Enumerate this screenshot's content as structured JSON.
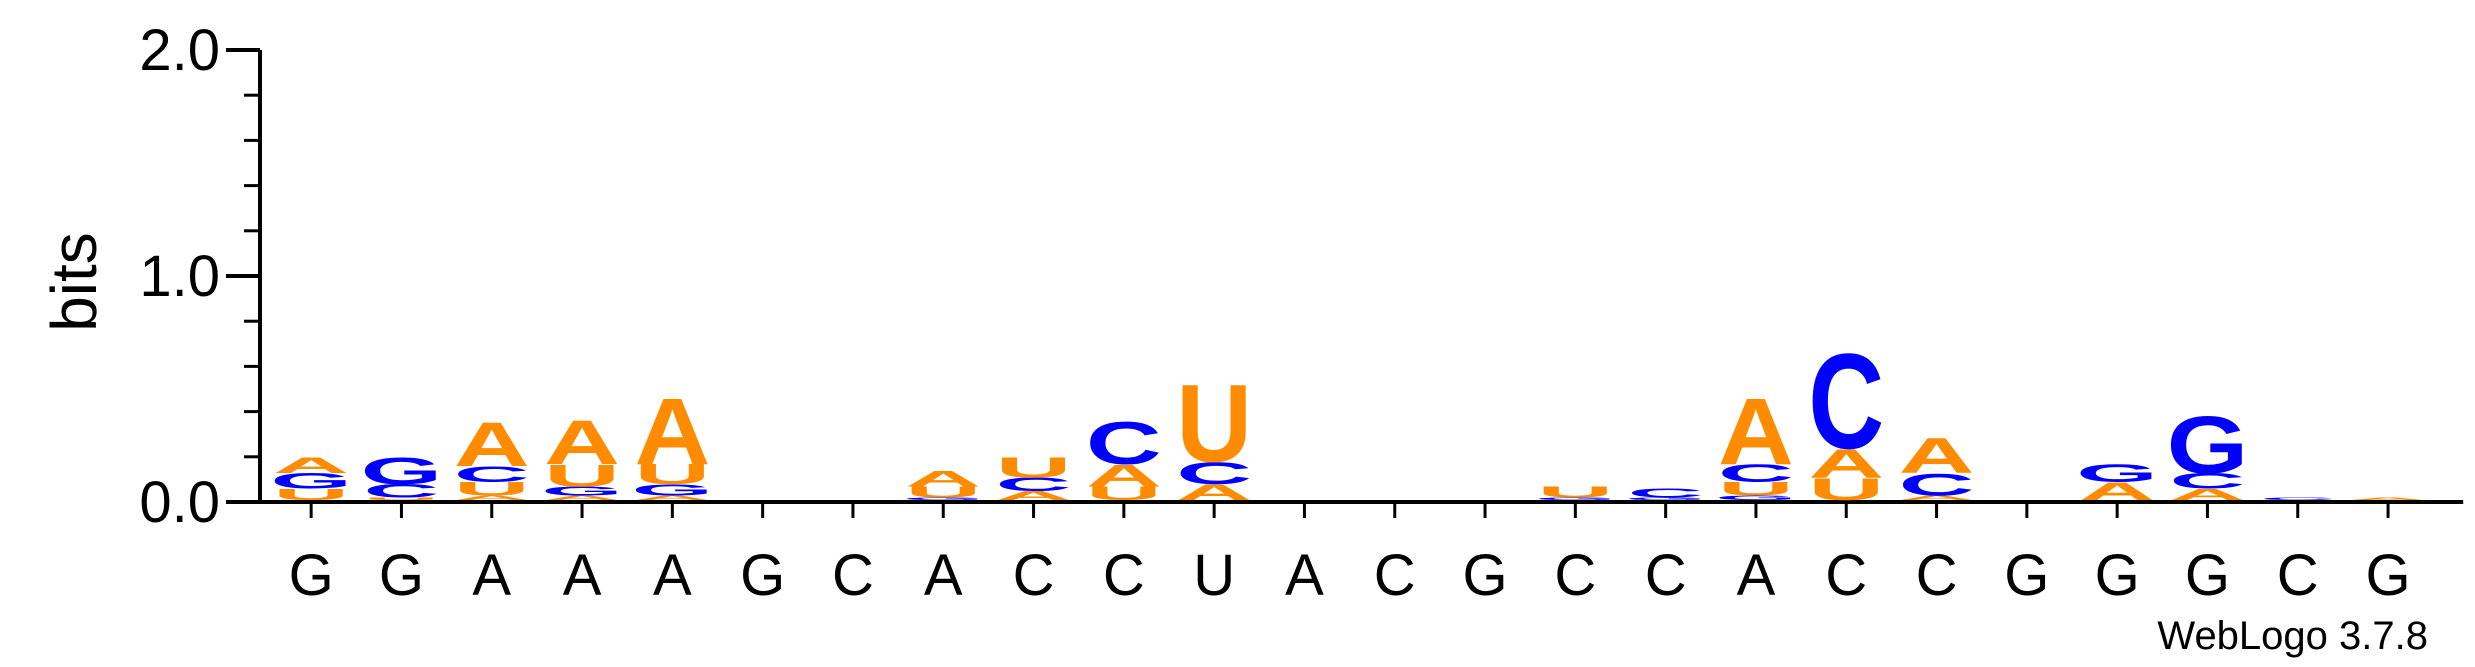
{
  "chart_data": {
    "type": "sequence-logo",
    "ylabel": "bits",
    "ylim": [
      0,
      2.0
    ],
    "y_ticks": [
      "0.0",
      "1.0",
      "2.0"
    ],
    "x_tick_labels": [
      "G",
      "G",
      "A",
      "A",
      "A",
      "G",
      "C",
      "A",
      "C",
      "C",
      "U",
      "A",
      "C",
      "G",
      "C",
      "C",
      "A",
      "C",
      "C",
      "G",
      "G",
      "G",
      "C",
      "G"
    ],
    "colors": {
      "A": "#ff8c00",
      "U": "#ff8c00",
      "C": "#0000ff",
      "G": "#0000ff"
    },
    "stacks": [
      [
        {
          "l": "U",
          "h": 0.05
        },
        {
          "l": "G",
          "h": 0.07
        },
        {
          "l": "A",
          "h": 0.07
        }
      ],
      [
        {
          "l": "U",
          "h": 0.01
        },
        {
          "l": "C",
          "h": 0.06
        },
        {
          "l": "G",
          "h": 0.12
        }
      ],
      [
        {
          "l": "A",
          "h": 0.02
        },
        {
          "l": "U",
          "h": 0.06
        },
        {
          "l": "C",
          "h": 0.07
        },
        {
          "l": "A",
          "h": 0.2
        }
      ],
      [
        {
          "l": "A",
          "h": 0.02
        },
        {
          "l": "G",
          "h": 0.04
        },
        {
          "l": "U",
          "h": 0.1
        },
        {
          "l": "A",
          "h": 0.2
        }
      ],
      [
        {
          "l": "A",
          "h": 0.02
        },
        {
          "l": "G",
          "h": 0.05
        },
        {
          "l": "U",
          "h": 0.09
        },
        {
          "l": "A",
          "h": 0.3
        }
      ],
      [],
      [],
      [
        {
          "l": "G",
          "h": 0.01
        },
        {
          "l": "U",
          "h": 0.05
        },
        {
          "l": "A",
          "h": 0.07
        }
      ],
      [
        {
          "l": "A",
          "h": 0.04
        },
        {
          "l": "C",
          "h": 0.06
        },
        {
          "l": "U",
          "h": 0.09
        }
      ],
      [
        {
          "l": "U",
          "h": 0.06
        },
        {
          "l": "A",
          "h": 0.1
        },
        {
          "l": "C",
          "h": 0.19
        }
      ],
      [
        {
          "l": "A",
          "h": 0.07
        },
        {
          "l": "C",
          "h": 0.1
        },
        {
          "l": "U",
          "h": 0.35
        }
      ],
      [],
      [],
      [],
      [
        {
          "l": "G",
          "h": 0.01
        },
        {
          "l": "U",
          "h": 0.05
        }
      ],
      [
        {
          "l": "G",
          "h": 0.01
        },
        {
          "l": "C",
          "h": 0.04
        }
      ],
      [
        {
          "l": "G",
          "h": 0.02
        },
        {
          "l": "U",
          "h": 0.06
        },
        {
          "l": "C",
          "h": 0.08
        },
        {
          "l": "A",
          "h": 0.3
        }
      ],
      [
        {
          "l": "U",
          "h": 0.1
        },
        {
          "l": "A",
          "h": 0.13
        },
        {
          "l": "C",
          "h": 0.43
        }
      ],
      [
        {
          "l": "A",
          "h": 0.02
        },
        {
          "l": "C",
          "h": 0.1
        },
        {
          "l": "A",
          "h": 0.16
        }
      ],
      [],
      [
        {
          "l": "A",
          "h": 0.08
        },
        {
          "l": "G",
          "h": 0.08
        }
      ],
      [
        {
          "l": "A",
          "h": 0.05
        },
        {
          "l": "C",
          "h": 0.07
        },
        {
          "l": "G",
          "h": 0.26
        }
      ],
      [
        {
          "l": "C",
          "h": 0.01
        }
      ],
      [
        {
          "l": "A",
          "h": 0.01
        }
      ]
    ]
  },
  "watermark": "WebLogo 3.7.8"
}
